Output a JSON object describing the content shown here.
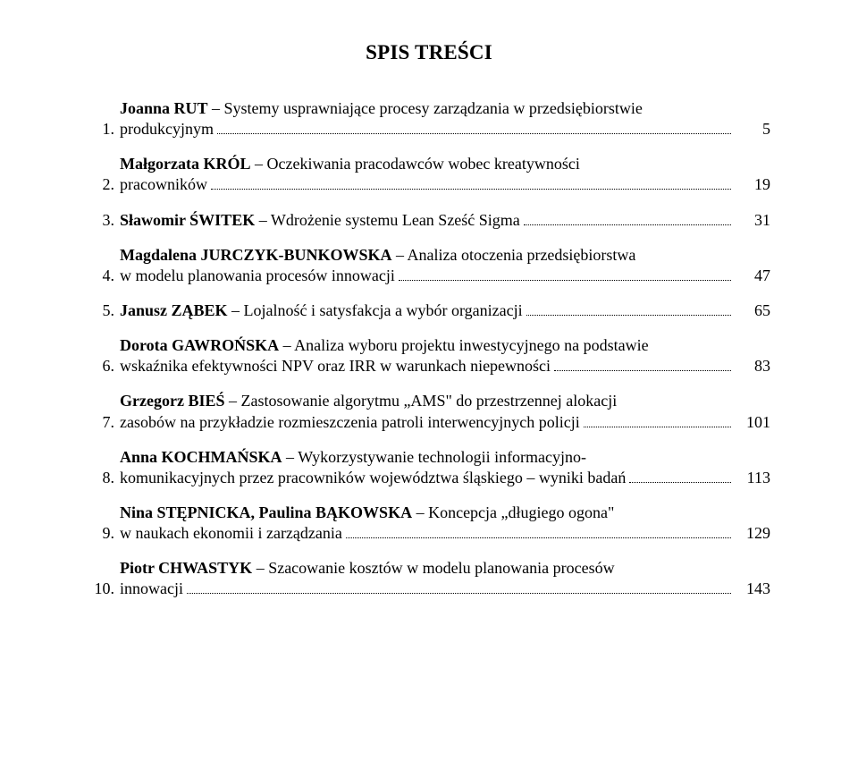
{
  "title": "SPIS TREŚCI",
  "font": {
    "family": "Times New Roman",
    "title_size_pt": 17,
    "body_size_pt": 13.5
  },
  "colors": {
    "text": "#000000",
    "background": "#ffffff"
  },
  "entries": [
    {
      "num": "1.",
      "lines": [
        "Joanna RUT – Systemy usprawniające procesy zarządzania w przedsiębiorstwie"
      ],
      "last": "produkcyjnym",
      "page": "5",
      "bold_prefix": "Joanna RUT"
    },
    {
      "num": "2.",
      "lines": [
        "Małgorzata KRÓL – Oczekiwania pracodawców wobec kreatywności"
      ],
      "last": "pracowników",
      "page": "19",
      "bold_prefix": "Małgorzata KRÓL"
    },
    {
      "num": "3.",
      "lines": [],
      "last": "Sławomir ŚWITEK – Wdrożenie systemu Lean Sześć Sigma",
      "page": "31",
      "bold_prefix": "Sławomir ŚWITEK"
    },
    {
      "num": "4.",
      "lines": [
        "Magdalena JURCZYK-BUNKOWSKA – Analiza otoczenia przedsiębiorstwa"
      ],
      "last": "w modelu planowania procesów innowacji",
      "page": "47",
      "bold_prefix": "Magdalena JURCZYK-BUNKOWSKA"
    },
    {
      "num": "5.",
      "lines": [],
      "last": "Janusz ZĄBEK – Lojalność i satysfakcja a wybór organizacji",
      "page": "65",
      "bold_prefix": "Janusz ZĄBEK"
    },
    {
      "num": "6.",
      "lines": [
        "Dorota GAWROŃSKA – Analiza wyboru projektu inwestycyjnego na podstawie"
      ],
      "last": "wskaźnika efektywności NPV oraz IRR w warunkach niepewności",
      "page": "83",
      "bold_prefix": "Dorota GAWROŃSKA"
    },
    {
      "num": "7.",
      "lines": [
        "Grzegorz BIEŚ – Zastosowanie algorytmu „AMS\" do przestrzennej alokacji"
      ],
      "last": "zasobów na przykładzie rozmieszczenia patroli interwencyjnych policji",
      "page": "101",
      "bold_prefix": "Grzegorz BIEŚ"
    },
    {
      "num": "8.",
      "lines": [
        "Anna KOCHMAŃSKA – Wykorzystywanie technologii informacyjno-"
      ],
      "last": "komunikacyjnych przez pracowników województwa śląskiego – wyniki badań",
      "page": "113",
      "bold_prefix": "Anna KOCHMAŃSKA"
    },
    {
      "num": "9.",
      "lines": [
        "Nina STĘPNICKA, Paulina BĄKOWSKA – Koncepcja „długiego ogona\""
      ],
      "last": "w naukach ekonomii i zarządzania",
      "page": "129",
      "bold_prefix": "Nina STĘPNICKA, Paulina BĄKOWSKA"
    },
    {
      "num": "10.",
      "lines": [
        "Piotr CHWASTYK – Szacowanie kosztów w modelu planowania procesów"
      ],
      "last": "innowacji",
      "page": "143",
      "bold_prefix": "Piotr CHWASTYK"
    }
  ]
}
